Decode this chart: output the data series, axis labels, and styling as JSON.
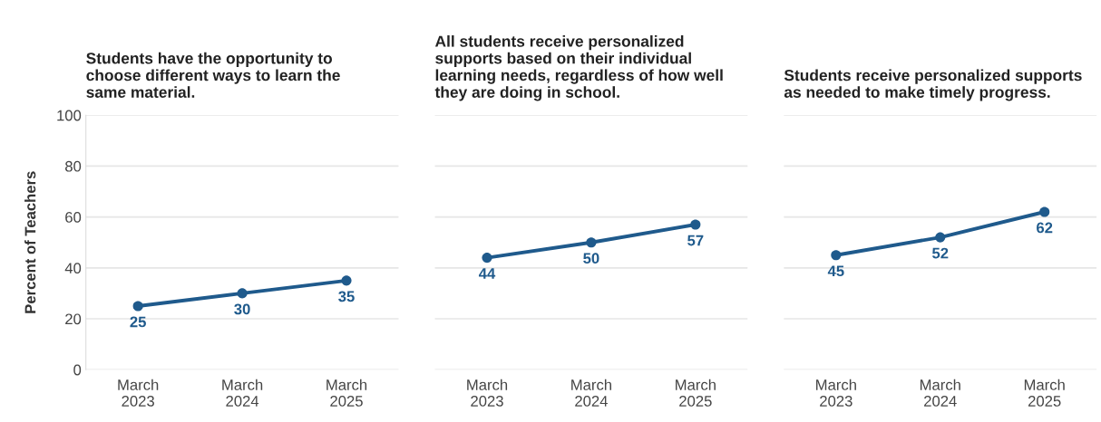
{
  "chart_data": [
    {
      "type": "line",
      "title": "Students have the opportunity to\nchoose different ways to learn the\nsame material.",
      "ylabel": "Percent of Teachers",
      "categories": [
        "March\n2023",
        "March\n2024",
        "March\n2025"
      ],
      "series": [
        {
          "color": "#1f5a8c",
          "values": [
            25,
            30,
            35
          ]
        }
      ],
      "ylim": [
        0,
        100
      ],
      "yticks": [
        0,
        20,
        40,
        60,
        80,
        100
      ],
      "grid": "y",
      "marker": "circle",
      "data_labels": true
    },
    {
      "type": "line",
      "title": "All students receive personalized\nsupports based on their individual\nlearning needs, regardless of how well\nthey are doing in school.",
      "categories": [
        "March\n2023",
        "March\n2024",
        "March\n2025"
      ],
      "series": [
        {
          "color": "#1f5a8c",
          "values": [
            44,
            50,
            57
          ]
        }
      ],
      "ylim": [
        0,
        100
      ],
      "yticks": [
        0,
        20,
        40,
        60,
        80,
        100
      ],
      "grid": "y",
      "marker": "circle",
      "data_labels": true,
      "tick_labels": "x"
    },
    {
      "type": "line",
      "title": "Students receive personalized supports\nas needed to make timely progress.",
      "categories": [
        "March\n2023",
        "March\n2024",
        "March\n2025"
      ],
      "series": [
        {
          "color": "#1f5a8c",
          "values": [
            45,
            52,
            62
          ]
        }
      ],
      "ylim": [
        0,
        100
      ],
      "yticks": [
        0,
        20,
        40,
        60,
        80,
        100
      ],
      "grid": "y",
      "marker": "circle",
      "data_labels": true,
      "tick_labels": "x"
    }
  ]
}
